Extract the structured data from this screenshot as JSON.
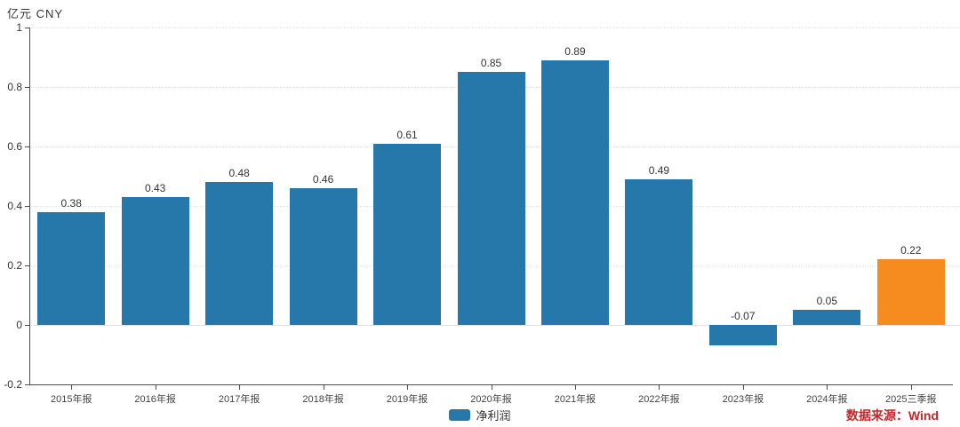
{
  "chart": {
    "unit_label": "亿元  CNY",
    "legend_label": "净利润",
    "source_label": "数据来源：Wind"
  },
  "chart_data": {
    "type": "bar",
    "title": "",
    "ylabel_unit": "亿元 CNY",
    "categories": [
      "2015年报",
      "2016年报",
      "2017年报",
      "2018年报",
      "2019年报",
      "2020年报",
      "2021年报",
      "2022年报",
      "2023年报",
      "2024年报",
      "2025三季报"
    ],
    "series": [
      {
        "name": "净利润",
        "values": [
          0.38,
          0.43,
          0.48,
          0.46,
          0.61,
          0.85,
          0.89,
          0.49,
          -0.07,
          0.05,
          0.22
        ]
      }
    ],
    "data_labels": [
      "0.38",
      "0.43",
      "0.48",
      "0.46",
      "0.61",
      "0.85",
      "0.89",
      "0.49",
      "-0.07",
      "0.05",
      "0.22"
    ],
    "highlight_index": 10,
    "colors": {
      "bar": "#2578a9",
      "highlight_bar": "#f68b1f",
      "source_text": "#c2282a",
      "axis": "#4d4d4d",
      "grid": "#e2e2e2"
    },
    "ylim": [
      -0.2,
      1
    ],
    "yticks": [
      -0.2,
      0,
      0.2,
      0.4,
      0.6,
      0.8,
      1
    ],
    "grid": "dotted-horizontal",
    "legend_position": "bottom-center",
    "legend_entries": [
      "净利润"
    ]
  }
}
